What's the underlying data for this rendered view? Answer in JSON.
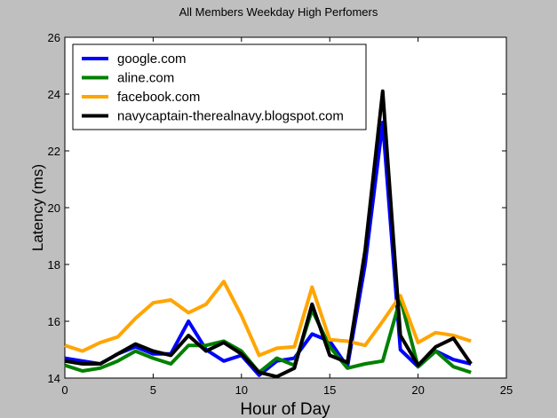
{
  "chart_data": {
    "type": "line",
    "title": "All Members Weekday High Perfomers",
    "xlabel": "Hour of Day",
    "ylabel": "Latency (ms)",
    "xlim": [
      0,
      25
    ],
    "ylim": [
      14,
      26
    ],
    "xticks": [
      0,
      5,
      10,
      15,
      20,
      25
    ],
    "yticks": [
      14,
      16,
      18,
      20,
      22,
      24,
      26
    ],
    "grid": false,
    "legend_position": "top-left",
    "x": [
      0,
      1,
      2,
      3,
      4,
      5,
      6,
      7,
      8,
      9,
      10,
      11,
      12,
      13,
      14,
      15,
      16,
      17,
      18,
      19,
      20,
      21,
      22,
      23
    ],
    "series": [
      {
        "name": "google.com",
        "color": "#0000ff",
        "values": [
          14.7,
          14.6,
          14.5,
          14.85,
          15.1,
          14.85,
          14.85,
          16.0,
          15.0,
          14.6,
          14.8,
          14.1,
          14.6,
          14.7,
          15.55,
          15.3,
          14.4,
          18.0,
          23.0,
          15.0,
          14.4,
          14.95,
          14.65,
          14.5
        ]
      },
      {
        "name": "aline.com",
        "color": "#008000",
        "values": [
          14.45,
          14.25,
          14.35,
          14.6,
          14.95,
          14.7,
          14.5,
          15.15,
          15.15,
          15.3,
          14.95,
          14.2,
          14.7,
          14.45,
          16.4,
          15.1,
          14.35,
          14.5,
          14.6,
          16.8,
          14.4,
          14.95,
          14.4,
          14.2
        ]
      },
      {
        "name": "facebook.com",
        "color": "#ffa500",
        "values": [
          15.15,
          14.95,
          15.25,
          15.45,
          16.1,
          16.65,
          16.75,
          16.3,
          16.6,
          17.4,
          16.2,
          14.8,
          15.05,
          15.1,
          17.2,
          15.35,
          15.3,
          15.15,
          16.0,
          16.9,
          15.25,
          15.6,
          15.5,
          15.3
        ]
      },
      {
        "name": "navycaptain-therealnavy.blogspot.com",
        "color": "#000000",
        "values": [
          14.6,
          14.5,
          14.5,
          14.85,
          15.2,
          14.95,
          14.8,
          15.5,
          14.95,
          15.25,
          14.85,
          14.2,
          14.05,
          14.35,
          16.6,
          14.8,
          14.55,
          18.5,
          24.1,
          15.5,
          14.45,
          15.1,
          15.4,
          14.5
        ]
      }
    ]
  }
}
